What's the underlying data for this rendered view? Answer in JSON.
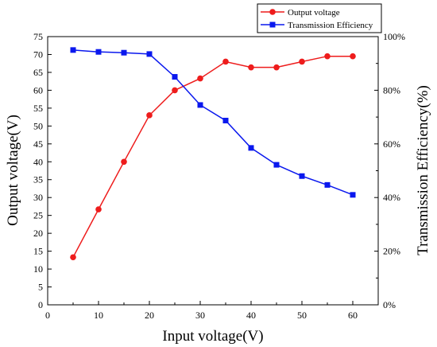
{
  "chart_data": {
    "type": "line",
    "xlabel": "Input voltage(V)",
    "ylabel": "Output voltage(V)",
    "y2label": "Transmission Efficiency(%)",
    "xlim": [
      0,
      65
    ],
    "ylim": [
      0,
      75
    ],
    "y2lim": [
      0,
      100
    ],
    "x_ticks": [
      0,
      10,
      20,
      30,
      40,
      50,
      60
    ],
    "y_ticks": [
      0,
      5,
      10,
      15,
      20,
      25,
      30,
      35,
      40,
      45,
      50,
      55,
      60,
      65,
      70,
      75
    ],
    "y2_ticks": [
      0,
      20,
      40,
      60,
      80,
      100
    ],
    "x_tick_labels": [
      "0",
      "10",
      "20",
      "30",
      "40",
      "50",
      "60"
    ],
    "y_tick_labels": [
      "0",
      "5",
      "10",
      "15",
      "20",
      "25",
      "30",
      "35",
      "40",
      "45",
      "50",
      "55",
      "60",
      "65",
      "70",
      "75"
    ],
    "y2_tick_labels": [
      "0%",
      "20%",
      "40%",
      "60%",
      "80%",
      "100%"
    ],
    "legend_position": "top-right, above plot",
    "grid": false,
    "series": [
      {
        "name": "Output voltage",
        "axis": "left",
        "color": "#ee1c1c",
        "marker": "circle",
        "x": [
          5,
          10,
          15,
          20,
          25,
          30,
          35,
          40,
          45,
          50,
          55,
          60
        ],
        "values": [
          13.3,
          26.7,
          40.0,
          53.0,
          60.0,
          63.3,
          68.0,
          66.4,
          66.4,
          68.0,
          69.5,
          69.5
        ]
      },
      {
        "name": "Transmission Efficiency",
        "axis": "right",
        "color": "#0a18ee",
        "marker": "square",
        "x": [
          5,
          10,
          15,
          20,
          25,
          30,
          35,
          40,
          45,
          50,
          55,
          60
        ],
        "values": [
          95.0,
          94.3,
          94.0,
          93.5,
          85.0,
          74.5,
          68.7,
          58.5,
          52.2,
          48.0,
          44.7,
          41.0
        ]
      }
    ]
  }
}
